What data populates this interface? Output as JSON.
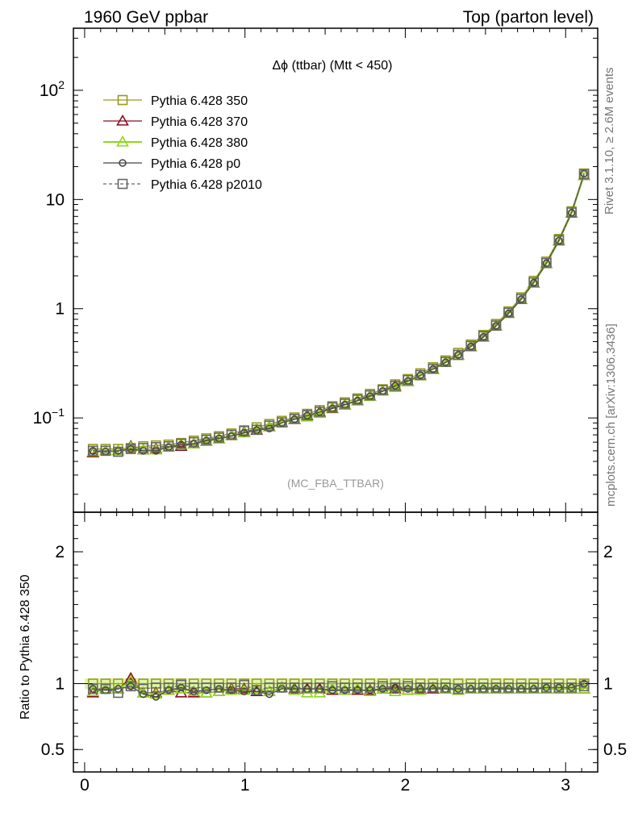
{
  "header": {
    "left": "1960 GeV ppbar",
    "right": "Top (parton level)"
  },
  "side_labels": {
    "rivet": "Rivet 3.1.10, ≥ 2.6M events",
    "mcplots": "mcplots.cern.ch [arXiv:1306.3436]"
  },
  "watermark": "(MC_FBA_TTBAR)",
  "colors": {
    "p350": "#9a9a1a",
    "p370": "#8b0d1f",
    "p380": "#8fd61a",
    "p0": "#444444",
    "p2010": "#666666",
    "band": "#d4f29a"
  },
  "chart_data": [
    {
      "type": "line",
      "panel": "main",
      "title": "Δϕ (ttbar) (Mtt < 450)",
      "log_y": true,
      "xlim": [
        -0.07,
        3.2
      ],
      "ylim": [
        0.0137,
        370
      ],
      "y_ticks": [
        {
          "value": 0.1,
          "base": "10",
          "exp": "−1"
        },
        {
          "value": 1,
          "label": "1"
        },
        {
          "value": 10,
          "label": "10"
        },
        {
          "value": 100,
          "base": "10",
          "exp": "2"
        }
      ],
      "legend_position": "top-left",
      "x": [
        0.052,
        0.131,
        0.209,
        0.288,
        0.366,
        0.445,
        0.524,
        0.602,
        0.681,
        0.759,
        0.838,
        0.916,
        0.995,
        1.073,
        1.152,
        1.23,
        1.309,
        1.388,
        1.466,
        1.545,
        1.623,
        1.702,
        1.78,
        1.859,
        1.937,
        2.016,
        2.094,
        2.173,
        2.251,
        2.33,
        2.409,
        2.487,
        2.566,
        2.644,
        2.723,
        2.801,
        2.88,
        2.958,
        3.037,
        3.115
      ],
      "series": [
        {
          "name": "Pythia 6.428 350",
          "marker": "square",
          "color_key": "p350",
          "values": [
            0.052,
            0.052,
            0.052,
            0.053,
            0.055,
            0.056,
            0.057,
            0.059,
            0.062,
            0.065,
            0.068,
            0.072,
            0.077,
            0.082,
            0.088,
            0.094,
            0.101,
            0.109,
            0.118,
            0.128,
            0.139,
            0.151,
            0.166,
            0.183,
            0.203,
            0.227,
            0.256,
            0.291,
            0.336,
            0.394,
            0.47,
            0.575,
            0.725,
            0.945,
            1.27,
            1.8,
            2.7,
            4.35,
            7.8,
            17.3
          ]
        },
        {
          "name": "Pythia 6.428 370",
          "marker": "triangle",
          "color_key": "p370",
          "values": [
            0.048,
            0.05,
            0.05,
            0.055,
            0.051,
            0.052,
            0.054,
            0.055,
            0.058,
            0.061,
            0.064,
            0.069,
            0.074,
            0.077,
            0.083,
            0.091,
            0.097,
            0.105,
            0.113,
            0.122,
            0.132,
            0.144,
            0.158,
            0.176,
            0.195,
            0.215,
            0.245,
            0.279,
            0.322,
            0.375,
            0.45,
            0.549,
            0.694,
            0.907,
            1.22,
            1.72,
            2.59,
            4.19,
            7.51,
            16.6
          ]
        },
        {
          "name": "Pythia 6.428 380",
          "marker": "triangle",
          "color_key": "p380",
          "values": [
            0.049,
            0.05,
            0.05,
            0.054,
            0.051,
            0.051,
            0.054,
            0.057,
            0.058,
            0.061,
            0.064,
            0.069,
            0.073,
            0.079,
            0.083,
            0.092,
            0.098,
            0.102,
            0.11,
            0.123,
            0.133,
            0.145,
            0.157,
            0.176,
            0.19,
            0.215,
            0.243,
            0.282,
            0.322,
            0.373,
            0.453,
            0.55,
            0.696,
            0.907,
            1.22,
            1.73,
            2.59,
            4.18,
            7.49,
            16.6
          ]
        },
        {
          "name": "Pythia 6.428 p0",
          "marker": "circle",
          "color_key": "p0",
          "values": [
            0.05,
            0.049,
            0.05,
            0.052,
            0.05,
            0.05,
            0.054,
            0.057,
            0.058,
            0.062,
            0.065,
            0.068,
            0.073,
            0.077,
            0.08,
            0.09,
            0.097,
            0.105,
            0.113,
            0.122,
            0.132,
            0.144,
            0.158,
            0.176,
            0.197,
            0.218,
            0.246,
            0.28,
            0.323,
            0.378,
            0.451,
            0.552,
            0.696,
            0.907,
            1.22,
            1.73,
            2.61,
            4.2,
            7.57,
            17.3
          ]
        },
        {
          "name": "Pythia 6.428 p2010",
          "marker": "square",
          "dashed": true,
          "color_key": "p2010",
          "values": [
            0.05,
            0.05,
            0.049,
            0.052,
            0.053,
            0.054,
            0.055,
            0.058,
            0.06,
            0.063,
            0.066,
            0.07,
            0.076,
            0.078,
            0.085,
            0.091,
            0.098,
            0.106,
            0.114,
            0.125,
            0.135,
            0.147,
            0.161,
            0.18,
            0.197,
            0.222,
            0.247,
            0.282,
            0.326,
            0.378,
            0.456,
            0.56,
            0.702,
            0.92,
            1.23,
            1.74,
            2.62,
            4.23,
            7.6,
            17.0
          ]
        }
      ]
    },
    {
      "type": "line",
      "panel": "ratio",
      "ylabel": "Ratio to Pythia 6.428 350",
      "xlim": [
        -0.07,
        3.2
      ],
      "ylim": [
        0.33,
        2.3
      ],
      "x_ticks": [
        0,
        1,
        2,
        3
      ],
      "y_ticks": [
        0.5,
        1,
        2
      ],
      "band": [
        0.96,
        1.04
      ],
      "x": [
        0.052,
        0.131,
        0.209,
        0.288,
        0.366,
        0.445,
        0.524,
        0.602,
        0.681,
        0.759,
        0.838,
        0.916,
        0.995,
        1.073,
        1.152,
        1.23,
        1.309,
        1.388,
        1.466,
        1.545,
        1.623,
        1.702,
        1.78,
        1.859,
        1.937,
        2.016,
        2.094,
        2.173,
        2.251,
        2.33,
        2.409,
        2.487,
        2.566,
        2.644,
        2.723,
        2.801,
        2.88,
        2.958,
        3.037,
        3.115
      ],
      "series": [
        {
          "name": "Pythia 6.428 350",
          "marker": "square",
          "color_key": "p350",
          "values": [
            1,
            1,
            1,
            1,
            1,
            1,
            1,
            1,
            1,
            1,
            1,
            1,
            1,
            1,
            1,
            1,
            1,
            1,
            1,
            1,
            1,
            1,
            1,
            1,
            1,
            1,
            1,
            1,
            1,
            1,
            1,
            1,
            1,
            1,
            1,
            1,
            1,
            1,
            1,
            1
          ]
        },
        {
          "name": "Pythia 6.428 370",
          "marker": "triangle",
          "color_key": "p370",
          "values": [
            0.93,
            0.96,
            0.96,
            1.04,
            0.93,
            0.93,
            0.95,
            0.93,
            0.93,
            0.93,
            0.94,
            0.96,
            0.96,
            0.94,
            0.94,
            0.97,
            0.96,
            0.96,
            0.96,
            0.95,
            0.95,
            0.95,
            0.95,
            0.96,
            0.96,
            0.95,
            0.96,
            0.96,
            0.96,
            0.95,
            0.96,
            0.96,
            0.96,
            0.96,
            0.96,
            0.96,
            0.96,
            0.96,
            0.96,
            0.96
          ]
        },
        {
          "name": "Pythia 6.428 380",
          "marker": "triangle",
          "color_key": "p380",
          "values": [
            0.94,
            0.96,
            0.96,
            1.02,
            0.93,
            0.92,
            0.95,
            0.96,
            0.94,
            0.93,
            0.94,
            0.95,
            0.95,
            0.96,
            0.94,
            0.97,
            0.95,
            0.93,
            0.93,
            0.96,
            0.95,
            0.96,
            0.94,
            0.96,
            0.94,
            0.95,
            0.95,
            0.97,
            0.96,
            0.95,
            0.96,
            0.96,
            0.96,
            0.96,
            0.96,
            0.96,
            0.96,
            0.96,
            0.96,
            0.96
          ]
        },
        {
          "name": "Pythia 6.428 p0",
          "marker": "circle",
          "color_key": "p0",
          "values": [
            0.96,
            0.95,
            0.96,
            0.98,
            0.92,
            0.9,
            0.95,
            0.97,
            0.94,
            0.95,
            0.96,
            0.95,
            0.94,
            0.94,
            0.92,
            0.96,
            0.96,
            0.96,
            0.96,
            0.95,
            0.95,
            0.95,
            0.95,
            0.96,
            0.97,
            0.96,
            0.96,
            0.96,
            0.96,
            0.96,
            0.96,
            0.96,
            0.96,
            0.96,
            0.96,
            0.96,
            0.97,
            0.97,
            0.97,
            1.0
          ]
        },
        {
          "name": "Pythia 6.428 p2010",
          "marker": "square",
          "dashed": true,
          "color_key": "p2010",
          "values": [
            0.96,
            0.96,
            0.93,
            0.98,
            0.96,
            0.97,
            0.97,
            0.99,
            0.97,
            0.97,
            0.97,
            0.97,
            0.99,
            0.95,
            0.97,
            0.97,
            0.97,
            0.97,
            0.97,
            0.98,
            0.97,
            0.97,
            0.97,
            0.98,
            0.97,
            0.98,
            0.97,
            0.97,
            0.97,
            0.96,
            0.97,
            0.97,
            0.97,
            0.97,
            0.97,
            0.97,
            0.97,
            0.97,
            0.97,
            0.98
          ]
        }
      ]
    }
  ]
}
